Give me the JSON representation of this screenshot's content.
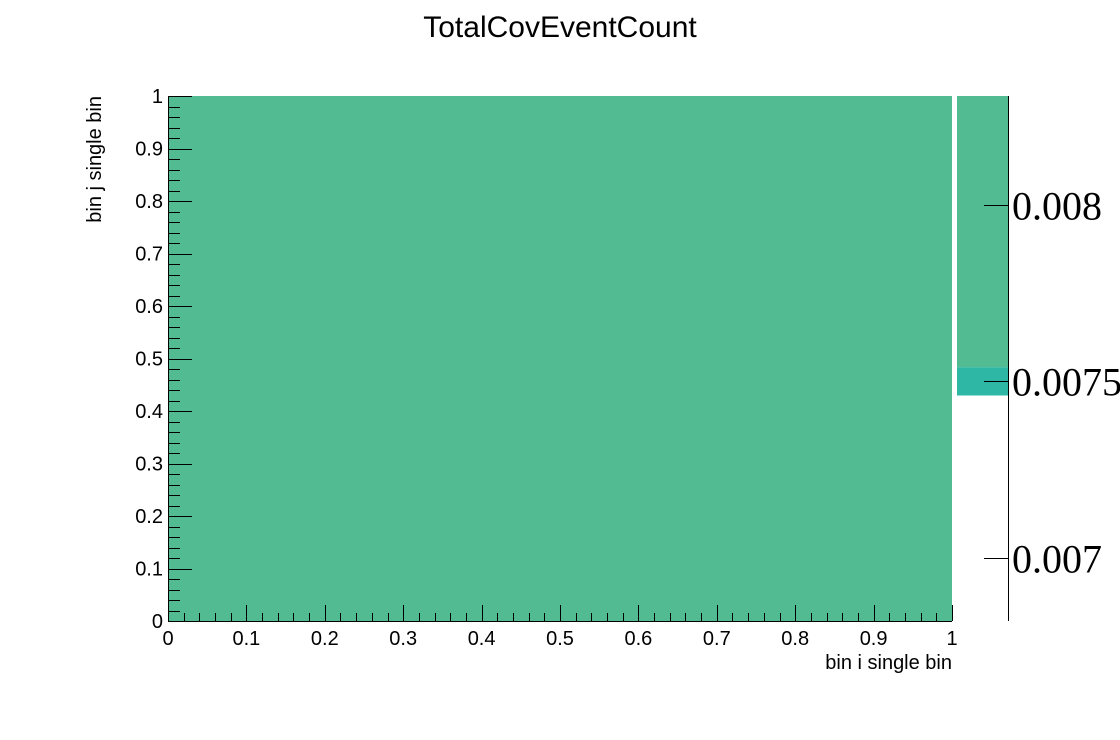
{
  "chart_data": {
    "type": "heatmap",
    "title": "TotalCovEventCount",
    "xlabel": "bin i single bin",
    "ylabel": "bin j single bin",
    "xlim": [
      0,
      1
    ],
    "ylim": [
      0,
      1
    ],
    "x_ticks": [
      "0",
      "0.1",
      "0.2",
      "0.3",
      "0.4",
      "0.5",
      "0.6",
      "0.7",
      "0.8",
      "0.9",
      "1"
    ],
    "y_ticks": [
      "0",
      "0.1",
      "0.2",
      "0.3",
      "0.4",
      "0.5",
      "0.6",
      "0.7",
      "0.8",
      "0.9",
      "1"
    ],
    "cells": [
      {
        "x": [
          0,
          1
        ],
        "y": [
          0,
          1
        ],
        "value": 0.0082,
        "color": "#52bb91"
      }
    ],
    "colorbar": {
      "range": [
        0.00682,
        0.00831
      ],
      "ticks": [
        {
          "value": 0.007,
          "label": "0.007"
        },
        {
          "value": 0.0075,
          "label": "0.0075"
        },
        {
          "value": 0.008,
          "label": "0.008"
        }
      ],
      "bands": [
        {
          "from": 0.00754,
          "to": 0.00831,
          "color": "#52bb91"
        },
        {
          "from": 0.00746,
          "to": 0.00754,
          "color": "#2db7a4"
        }
      ]
    },
    "grid": false,
    "legend": "none"
  }
}
